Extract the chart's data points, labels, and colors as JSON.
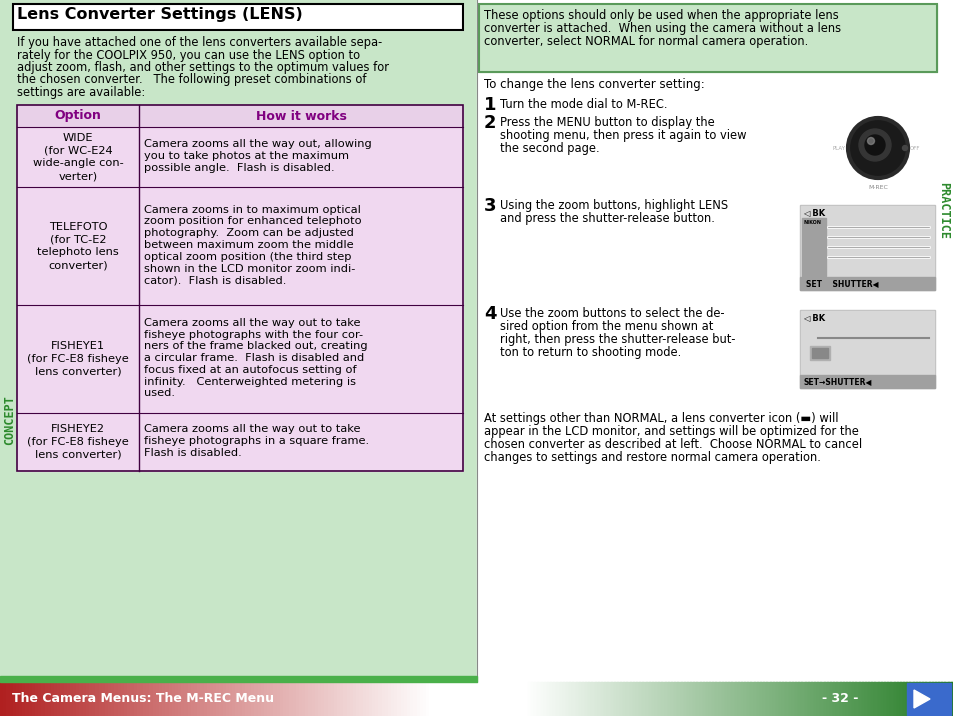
{
  "title": "Lens Converter Settings (LENS)",
  "left_bg": "#c8e6c8",
  "right_bg": "#ffffff",
  "header_bg": "#e8d0e8",
  "header_fg": "#800080",
  "table_border": "#400040",
  "row_bg": "#f0d8f0",
  "body_text_color": "#000000",
  "intro_text": "If you have attached one of the lens converters available sepa-\nrately for the COOLPIX 950, you can use the LENS option to\nadjust zoom, flash, and other settings to the optimum values for\nthe chosen converter.   The following preset combinations of\nsettings are available:",
  "note_text": "These options should only be used when the appropriate lens\nconverter is attached.  When using the camera without a lens\nconverter, select NORMAL for normal camera operation.",
  "note_bg": "#c8e6c8",
  "note_border": "#5a9a5a",
  "bottom_text_lines": [
    "At settings other than NORMAL, a lens converter icon (▬) will",
    "appear in the LCD monitor, and settings will be optimized for the",
    "chosen converter as described at left.  Choose NORMAL to cancel",
    "changes to settings and restore normal camera operation."
  ],
  "concept_label": "CONCEPT",
  "practice_label": "PRACTICE",
  "side_label_color": "#2d8a2d",
  "footer_text": "The Camera Menus: The M-REC Menu",
  "footer_page": "- 32 -",
  "footer_text_color": "#ffffff",
  "table_options": [
    "WIDE\n(for WC-E24\nwide-angle con-\nverter)",
    "TELEFOTO\n(for TC-E2\ntelephoto lens\nconverter)",
    "FISHEYE1\n(for FC-E8 fisheye\nlens converter)",
    "FISHEYE2\n(for FC-E8 fisheye\nlens converter)"
  ],
  "table_desc_lines": [
    [
      "Camera zooms all the way out, allowing",
      "you to take photos at the maximum",
      "possible angle.  Flash is disabled."
    ],
    [
      "Camera zooms in to maximum optical",
      "zoom position for enhanced telephoto",
      "photography.  Zoom can be adjusted",
      "between maximum zoom the middle",
      "optical zoom position (the third step",
      "shown in the LCD monitor zoom indi-",
      "cator).  Flash is disabled."
    ],
    [
      "Camera zooms all the way out to take",
      "fisheye photographs with the four cor-",
      "ners of the frame blacked out, creating",
      "a circular frame.  Flash is disabled and",
      "focus fixed at an autofocus setting of",
      "infinity.   Centerweighted metering is",
      "used."
    ],
    [
      "Camera zooms all the way out to take",
      "fisheye photographs in a square frame.",
      "Flash is disabled."
    ]
  ],
  "step1_text": "Turn the mode dial to M-REC.",
  "step2_lines": [
    "Press the MENU button to display the",
    "shooting menu, then press it again to view",
    "the second page."
  ],
  "step3_lines": [
    "Using the zoom buttons, highlight LENS",
    "and press the shutter-release button."
  ],
  "step4_lines": [
    "Use the zoom buttons to select the de-",
    "sired option from the menu shown at",
    "right, then press the shutter-release but-",
    "ton to return to shooting mode."
  ],
  "to_change_text": "To change the lens converter setting:"
}
